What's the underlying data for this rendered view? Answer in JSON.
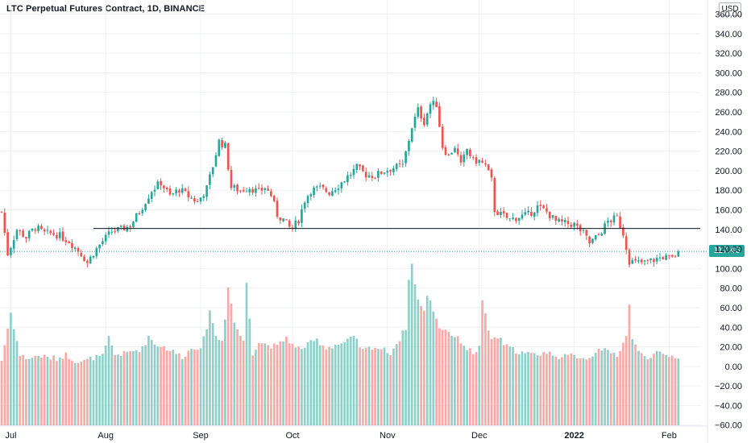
{
  "header": {
    "title": "LTC Perpetual Futures Contract, 1D, BINANCE",
    "currency": "USD"
  },
  "last_price": {
    "label": "117.46",
    "value": 117.46
  },
  "chart_data": {
    "type": "candlestick",
    "title": "LTC Perpetual Futures Contract, 1D, BINANCE",
    "ylim": [
      -65,
      365
    ],
    "y_ticks": [
      "360.00",
      "340.00",
      "320.00",
      "300.00",
      "280.00",
      "260.00",
      "240.00",
      "220.00",
      "200.00",
      "180.00",
      "160.00",
      "140.00",
      "120.00",
      "100.00",
      "80.00",
      "60.00",
      "40.00",
      "20.00",
      "0.00",
      "−20.00",
      "−40.00",
      "−60.00"
    ],
    "x_ticks": [
      {
        "label": "Jul",
        "index": 3,
        "bold": false
      },
      {
        "label": "Aug",
        "index": 34,
        "bold": false
      },
      {
        "label": "Sep",
        "index": 65,
        "bold": false
      },
      {
        "label": "Oct",
        "index": 95,
        "bold": false
      },
      {
        "label": "Nov",
        "index": 126,
        "bold": false
      },
      {
        "label": "Dec",
        "index": 156,
        "bold": false
      },
      {
        "label": "2022",
        "index": 187,
        "bold": true
      },
      {
        "label": "Feb",
        "index": 218,
        "bold": false
      }
    ],
    "grid": true,
    "horizontal_level": 141,
    "ohlc_anchors": [
      [
        0,
        158
      ],
      [
        2,
        115
      ],
      [
        5,
        140
      ],
      [
        8,
        132
      ],
      [
        11,
        142
      ],
      [
        14,
        136
      ],
      [
        18,
        135
      ],
      [
        22,
        128
      ],
      [
        26,
        115
      ],
      [
        28,
        106
      ],
      [
        30,
        116
      ],
      [
        33,
        128
      ],
      [
        36,
        138
      ],
      [
        39,
        140
      ],
      [
        42,
        144
      ],
      [
        45,
        158
      ],
      [
        49,
        180
      ],
      [
        52,
        188
      ],
      [
        55,
        174
      ],
      [
        58,
        181
      ],
      [
        61,
        174
      ],
      [
        64,
        168
      ],
      [
        67,
        182
      ],
      [
        69,
        205
      ],
      [
        71,
        230
      ],
      [
        73,
        225
      ],
      [
        75,
        183
      ],
      [
        78,
        180
      ],
      [
        81,
        183
      ],
      [
        84,
        178
      ],
      [
        86,
        183
      ],
      [
        88,
        175
      ],
      [
        90,
        155
      ],
      [
        92,
        150
      ],
      [
        94,
        142
      ],
      [
        95,
        141
      ],
      [
        97,
        150
      ],
      [
        99,
        170
      ],
      [
        101,
        180
      ],
      [
        104,
        182
      ],
      [
        107,
        178
      ],
      [
        110,
        185
      ],
      [
        113,
        194
      ],
      [
        116,
        203
      ],
      [
        119,
        196
      ],
      [
        122,
        195
      ],
      [
        125,
        200
      ],
      [
        128,
        203
      ],
      [
        131,
        205
      ],
      [
        134,
        245
      ],
      [
        136,
        262
      ],
      [
        138,
        250
      ],
      [
        140,
        268
      ],
      [
        142,
        268
      ],
      [
        144,
        225
      ],
      [
        146,
        215
      ],
      [
        148,
        225
      ],
      [
        150,
        205
      ],
      [
        152,
        222
      ],
      [
        154,
        210
      ],
      [
        156,
        210
      ],
      [
        158,
        205
      ],
      [
        160,
        190
      ],
      [
        161,
        160
      ],
      [
        163,
        155
      ],
      [
        166,
        150
      ],
      [
        169,
        153
      ],
      [
        172,
        155
      ],
      [
        175,
        163
      ],
      [
        178,
        158
      ],
      [
        181,
        148
      ],
      [
        184,
        146
      ],
      [
        187,
        145
      ],
      [
        190,
        136
      ],
      [
        192,
        126
      ],
      [
        195,
        134
      ],
      [
        198,
        148
      ],
      [
        201,
        152
      ],
      [
        203,
        136
      ],
      [
        205,
        108
      ],
      [
        207,
        106
      ],
      [
        210,
        106
      ],
      [
        213,
        109
      ],
      [
        216,
        112
      ],
      [
        219,
        110
      ],
      [
        221,
        117.46
      ]
    ],
    "volume_anchors": [
      [
        0,
        6
      ],
      [
        3,
        55
      ],
      [
        6,
        11
      ],
      [
        9,
        8
      ],
      [
        12,
        11
      ],
      [
        15,
        9
      ],
      [
        18,
        8
      ],
      [
        21,
        12
      ],
      [
        24,
        6
      ],
      [
        27,
        5
      ],
      [
        30,
        9
      ],
      [
        33,
        10
      ],
      [
        35,
        29
      ],
      [
        37,
        12
      ],
      [
        40,
        13
      ],
      [
        43,
        16
      ],
      [
        46,
        18
      ],
      [
        48,
        31
      ],
      [
        50,
        23
      ],
      [
        53,
        20
      ],
      [
        56,
        15
      ],
      [
        59,
        10
      ],
      [
        62,
        18
      ],
      [
        65,
        21
      ],
      [
        67,
        35
      ],
      [
        68,
        60
      ],
      [
        70,
        30
      ],
      [
        72,
        26
      ],
      [
        73,
        50
      ],
      [
        74,
        83
      ],
      [
        76,
        45
      ],
      [
        79,
        25
      ],
      [
        80,
        86
      ],
      [
        82,
        14
      ],
      [
        84,
        25
      ],
      [
        87,
        22
      ],
      [
        90,
        20
      ],
      [
        93,
        30
      ],
      [
        96,
        18
      ],
      [
        99,
        20
      ],
      [
        101,
        24
      ],
      [
        103,
        27
      ],
      [
        106,
        19
      ],
      [
        109,
        22
      ],
      [
        112,
        24
      ],
      [
        115,
        30
      ],
      [
        118,
        16
      ],
      [
        121,
        20
      ],
      [
        124,
        18
      ],
      [
        127,
        14
      ],
      [
        130,
        28
      ],
      [
        132,
        40
      ],
      [
        133,
        88
      ],
      [
        134,
        104
      ],
      [
        136,
        68
      ],
      [
        138,
        55
      ],
      [
        139,
        74
      ],
      [
        141,
        58
      ],
      [
        143,
        40
      ],
      [
        146,
        36
      ],
      [
        148,
        30
      ],
      [
        150,
        26
      ],
      [
        152,
        18
      ],
      [
        154,
        14
      ],
      [
        156,
        19
      ],
      [
        157,
        69
      ],
      [
        159,
        34
      ],
      [
        160,
        28
      ],
      [
        162,
        30
      ],
      [
        165,
        20
      ],
      [
        168,
        16
      ],
      [
        171,
        13
      ],
      [
        174,
        12
      ],
      [
        177,
        14
      ],
      [
        180,
        13
      ],
      [
        183,
        9
      ],
      [
        186,
        11
      ],
      [
        189,
        10
      ],
      [
        192,
        8
      ],
      [
        195,
        20
      ],
      [
        198,
        14
      ],
      [
        201,
        12
      ],
      [
        204,
        30
      ],
      [
        205,
        65
      ],
      [
        206,
        28
      ],
      [
        208,
        14
      ],
      [
        211,
        10
      ],
      [
        214,
        13
      ],
      [
        217,
        11
      ],
      [
        221,
        10
      ]
    ],
    "colors": {
      "up": "#26a69a",
      "down": "#ef5350",
      "volume_up": "#8ed0c9",
      "volume_down": "#f7a9a7",
      "level_line": "#131722",
      "last_price_line": "#26a69a",
      "grid": "#eef0f3"
    }
  }
}
